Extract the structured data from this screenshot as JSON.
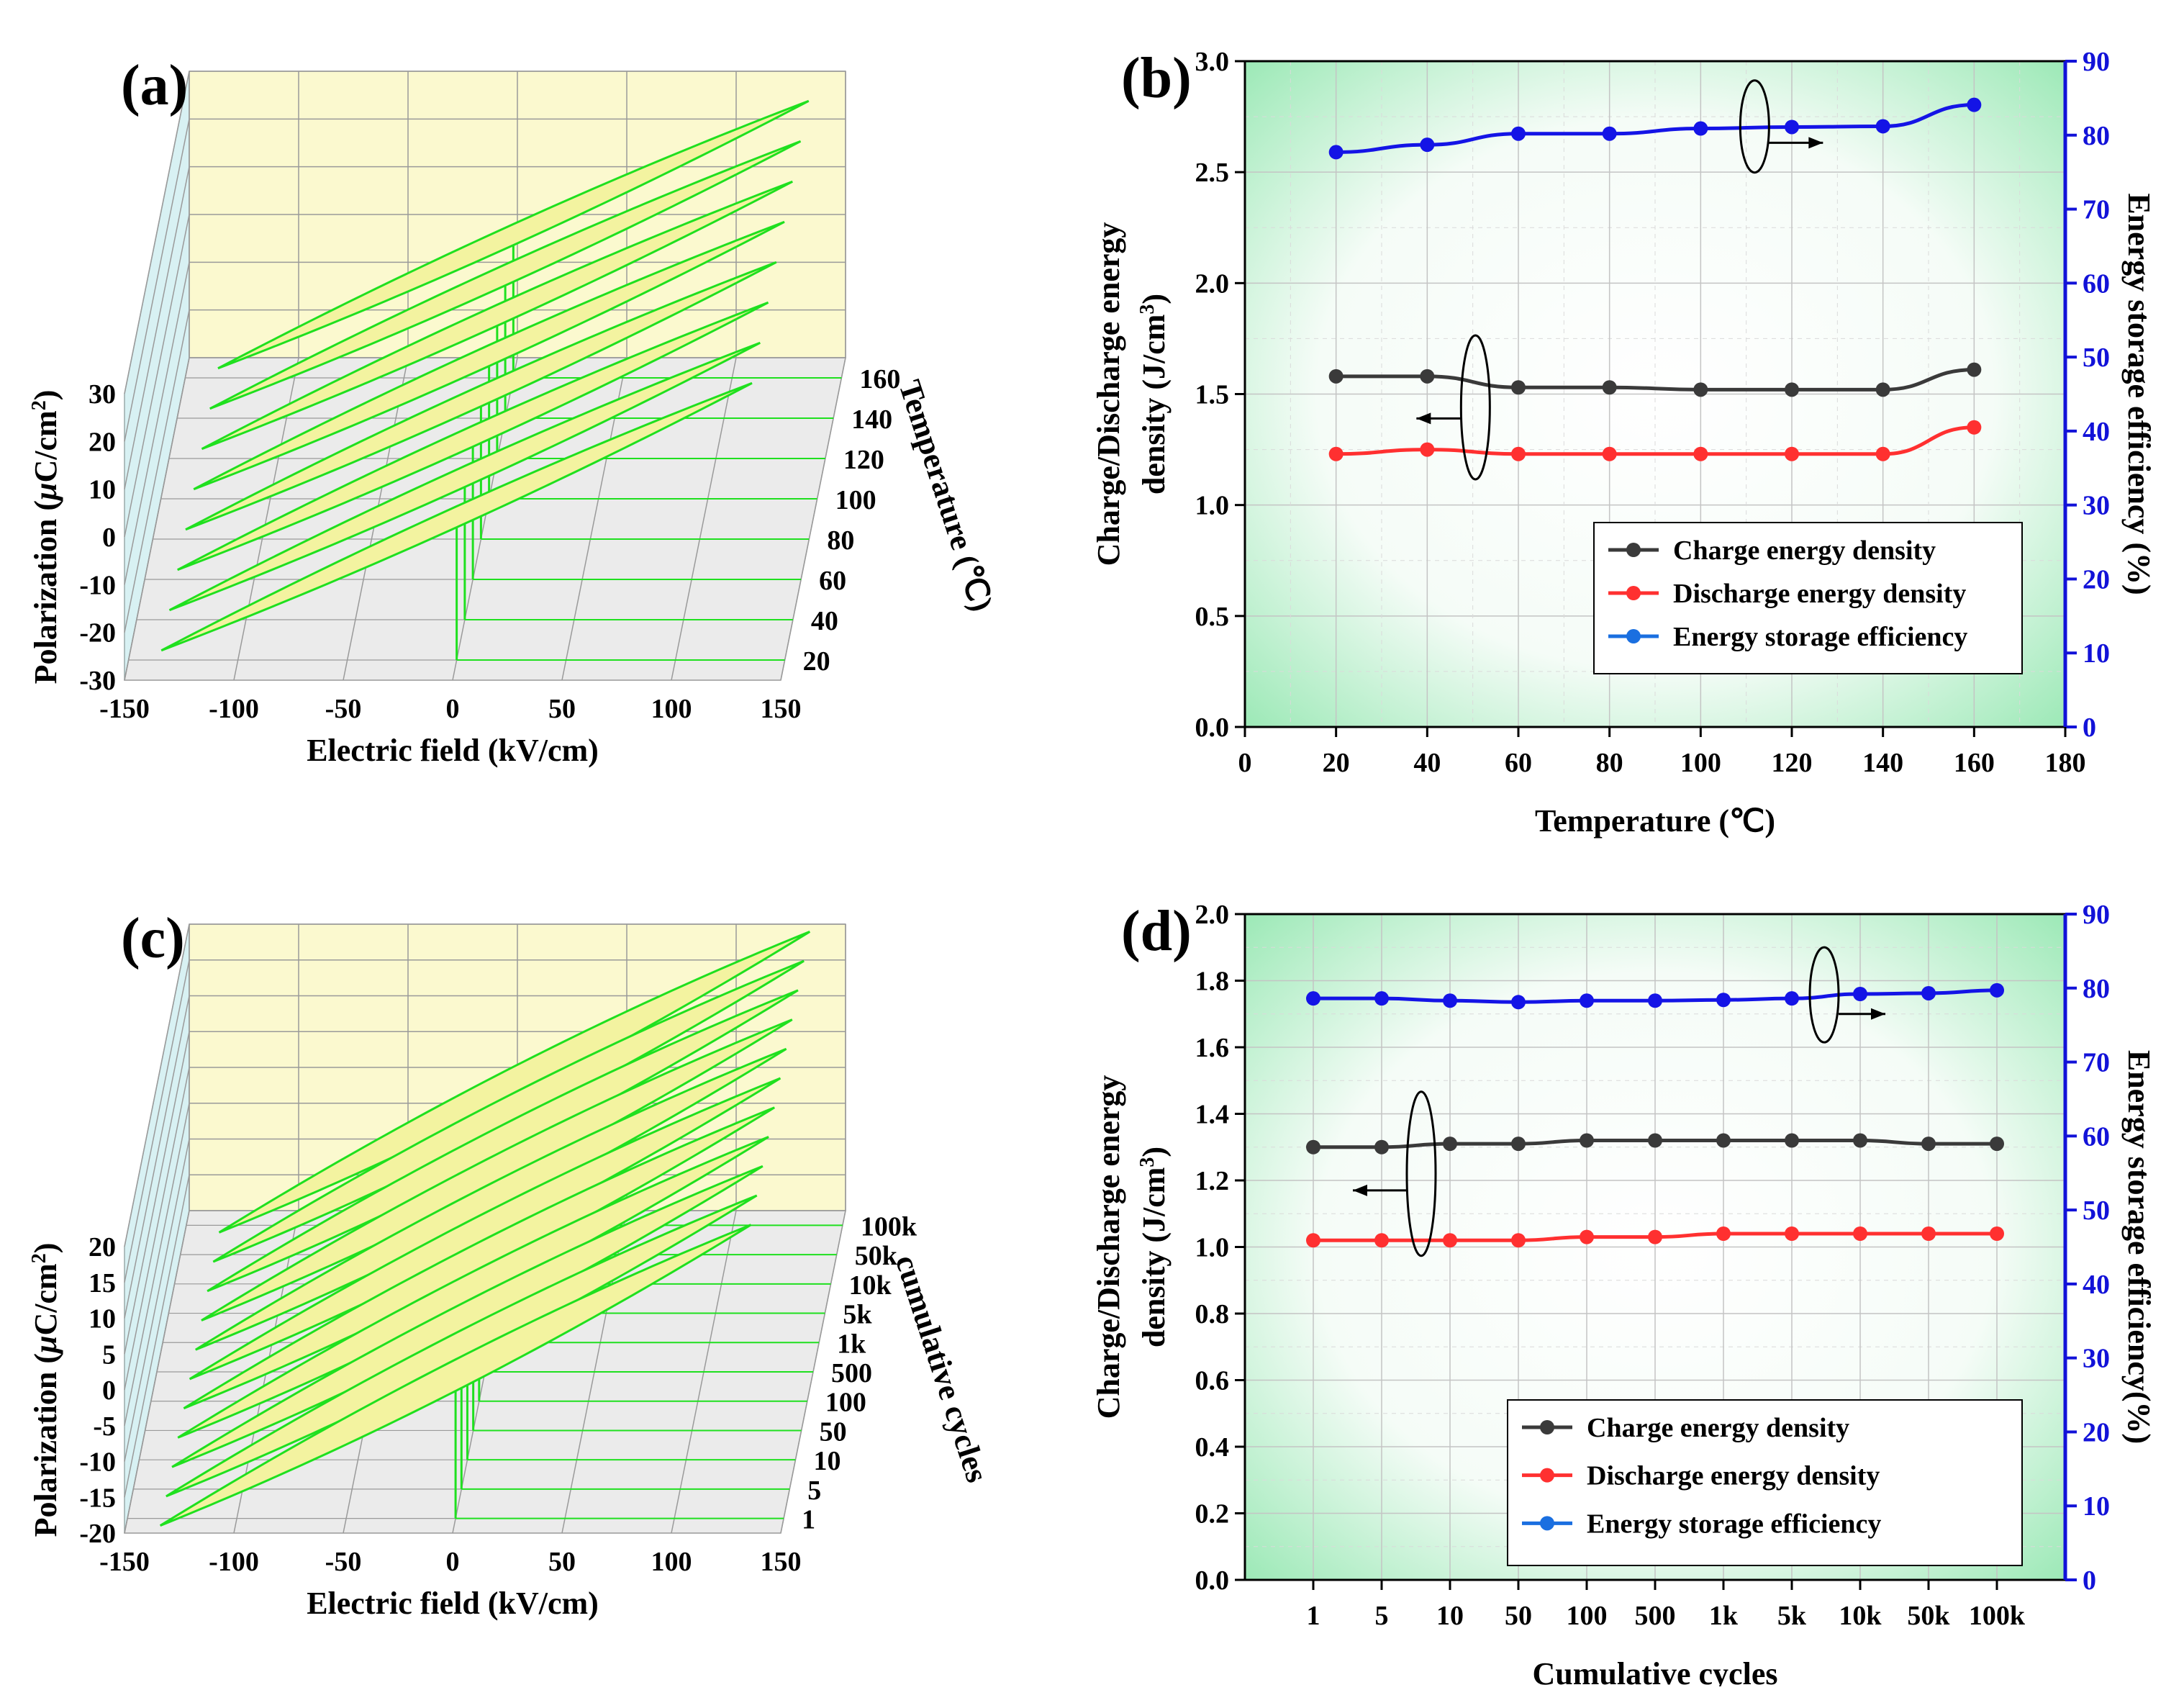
{
  "colors": {
    "charge": "#3a3a3a",
    "discharge": "#ff3030",
    "efficiency": "#1414e6",
    "efficiency_legend": "#1a6fe0",
    "right_axis": "#1212d8",
    "loop_fill": "#f3f3a0",
    "loop_stroke": "#1fe01f",
    "back_wall": "#fbf9cf",
    "side_wall": "#d8f1f3",
    "floor": "#ebebeb",
    "bg_green": "#8fe6ad"
  },
  "chart_data": [
    {
      "panel": "(a)",
      "type": "3d-hysteresis-loops",
      "xlabel": "Electric field (kV/cm)",
      "ylabel": "Polarization (μC/cm²)",
      "ylabel_parts": {
        "main": "Polarization (",
        "mu": "μ",
        "unit": "C/cm",
        "sup": "2",
        "close": ")"
      },
      "zlabel": "Temperature (℃)",
      "x_ticks": [
        "-150",
        "-100",
        "-50",
        "0",
        "50",
        "100",
        "150"
      ],
      "y_ticks": [
        "-30",
        "-20",
        "-10",
        "0",
        "10",
        "20",
        "30"
      ],
      "z_ticks": [
        "20",
        "40",
        "60",
        "80",
        "100",
        "120",
        "140",
        "160"
      ],
      "xlim": [
        -150,
        150
      ],
      "ylim": [
        -30,
        30
      ],
      "loop_peak_polarization": 28
    },
    {
      "panel": "(b)",
      "type": "line",
      "xlabel": "Temperature (℃)",
      "ylabel_line1": "Charge/Discharge energy",
      "ylabel_line2": "density (J/cm³)",
      "ylabel_line2_parts": {
        "main": "density (J/cm",
        "sup": "3",
        "close": ")"
      },
      "y2label": "Energy storage efficiency (%)",
      "x": [
        20,
        40,
        60,
        80,
        100,
        120,
        140,
        160
      ],
      "xlim": [
        0,
        180
      ],
      "x_ticks": [
        "0",
        "20",
        "40",
        "60",
        "80",
        "100",
        "120",
        "140",
        "160",
        "180"
      ],
      "ylim": [
        0,
        3.0
      ],
      "y_ticks": [
        "0.0",
        "0.5",
        "1.0",
        "1.5",
        "2.0",
        "2.5",
        "3.0"
      ],
      "y2lim": [
        0,
        90
      ],
      "y2_ticks": [
        "0",
        "10",
        "20",
        "30",
        "40",
        "50",
        "60",
        "70",
        "80",
        "90"
      ],
      "series": [
        {
          "name": "Charge energy density",
          "axis": "left",
          "values": [
            1.58,
            1.58,
            1.53,
            1.53,
            1.52,
            1.52,
            1.52,
            1.61
          ]
        },
        {
          "name": "Discharge energy density",
          "axis": "left",
          "values": [
            1.23,
            1.25,
            1.23,
            1.23,
            1.23,
            1.23,
            1.23,
            1.35
          ]
        },
        {
          "name": "Energy storage efficiency",
          "axis": "right",
          "values": [
            77.7,
            78.7,
            80.2,
            80.2,
            80.9,
            81.1,
            81.2,
            84.1
          ]
        }
      ]
    },
    {
      "panel": "(c)",
      "type": "3d-hysteresis-loops",
      "xlabel": "Electric field (kV/cm)",
      "ylabel": "Polarization (μC/cm²)",
      "ylabel_parts": {
        "main": "Polarization (",
        "mu": "μ",
        "unit": "C/cm",
        "sup": "2",
        "close": ")"
      },
      "zlabel": "cumulative cycles",
      "x_ticks": [
        "-150",
        "-100",
        "-50",
        "0",
        "50",
        "100",
        "150"
      ],
      "y_ticks": [
        "-20",
        "-15",
        "-10",
        "-5",
        "0",
        "5",
        "10",
        "15",
        "20"
      ],
      "z_ticks": [
        "1",
        "5",
        "10",
        "50",
        "100",
        "500",
        "1k",
        "5k",
        "10k",
        "50k",
        "100k"
      ],
      "xlim": [
        -150,
        150
      ],
      "ylim": [
        -20,
        20
      ],
      "loop_peak_polarization": 21
    },
    {
      "panel": "(d)",
      "type": "line",
      "xlabel": "Cumulative cycles",
      "ylabel_line1": "Charge/Discharge energy",
      "ylabel_line2": "density (J/cm³)",
      "ylabel_line2_parts": {
        "main": "density (J/cm",
        "sup": "3",
        "close": ")"
      },
      "y2label": "Energy storage efficiency(%)",
      "categories": [
        "1",
        "5",
        "10",
        "50",
        "100",
        "500",
        "1k",
        "5k",
        "10k",
        "50k",
        "100k"
      ],
      "ylim": [
        0,
        2.0
      ],
      "y_ticks": [
        "0.0",
        "0.2",
        "0.4",
        "0.6",
        "0.8",
        "1.0",
        "1.2",
        "1.4",
        "1.6",
        "1.8",
        "2.0"
      ],
      "y2lim": [
        0,
        90
      ],
      "y2_ticks": [
        "0",
        "10",
        "20",
        "30",
        "40",
        "50",
        "60",
        "70",
        "80",
        "90"
      ],
      "series": [
        {
          "name": "Charge energy density",
          "axis": "left",
          "values": [
            1.3,
            1.3,
            1.31,
            1.31,
            1.32,
            1.32,
            1.32,
            1.32,
            1.32,
            1.31,
            1.31
          ]
        },
        {
          "name": "Discharge energy density",
          "axis": "left",
          "values": [
            1.02,
            1.02,
            1.02,
            1.02,
            1.03,
            1.03,
            1.04,
            1.04,
            1.04,
            1.04,
            1.04
          ]
        },
        {
          "name": "Energy storage efficiency",
          "axis": "right",
          "values": [
            78.6,
            78.6,
            78.3,
            78.1,
            78.3,
            78.3,
            78.4,
            78.6,
            79.2,
            79.3,
            79.7
          ]
        }
      ]
    }
  ]
}
